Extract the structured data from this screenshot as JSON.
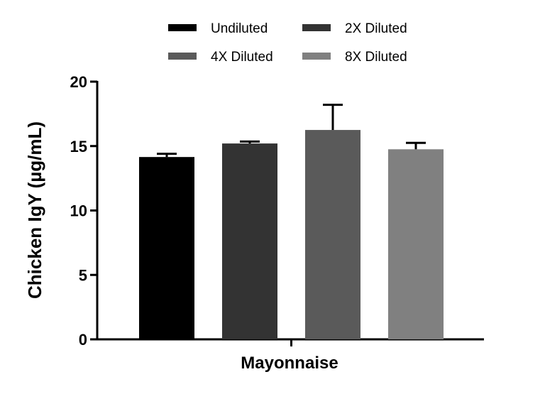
{
  "chart_data": {
    "type": "bar",
    "categories": [
      "Mayonnaise"
    ],
    "xlabel": "Mayonnaise",
    "ylabel": "Chicken IgY (µg/mL)",
    "ylim": [
      0,
      20
    ],
    "yticks": [
      0,
      5,
      10,
      15,
      20
    ],
    "grid": false,
    "legend_position": "top",
    "series": [
      {
        "name": "Undiluted",
        "values": [
          14.15
        ],
        "error": [
          0.25
        ],
        "color": "#000000"
      },
      {
        "name": "2X Diluted",
        "values": [
          15.2
        ],
        "error": [
          0.15
        ],
        "color": "#333333"
      },
      {
        "name": "4X Diluted",
        "values": [
          16.25
        ],
        "error": [
          1.95
        ],
        "color": "#5a5a5a"
      },
      {
        "name": "8X Diluted",
        "values": [
          14.75
        ],
        "error": [
          0.5
        ],
        "color": "#808080"
      }
    ]
  }
}
